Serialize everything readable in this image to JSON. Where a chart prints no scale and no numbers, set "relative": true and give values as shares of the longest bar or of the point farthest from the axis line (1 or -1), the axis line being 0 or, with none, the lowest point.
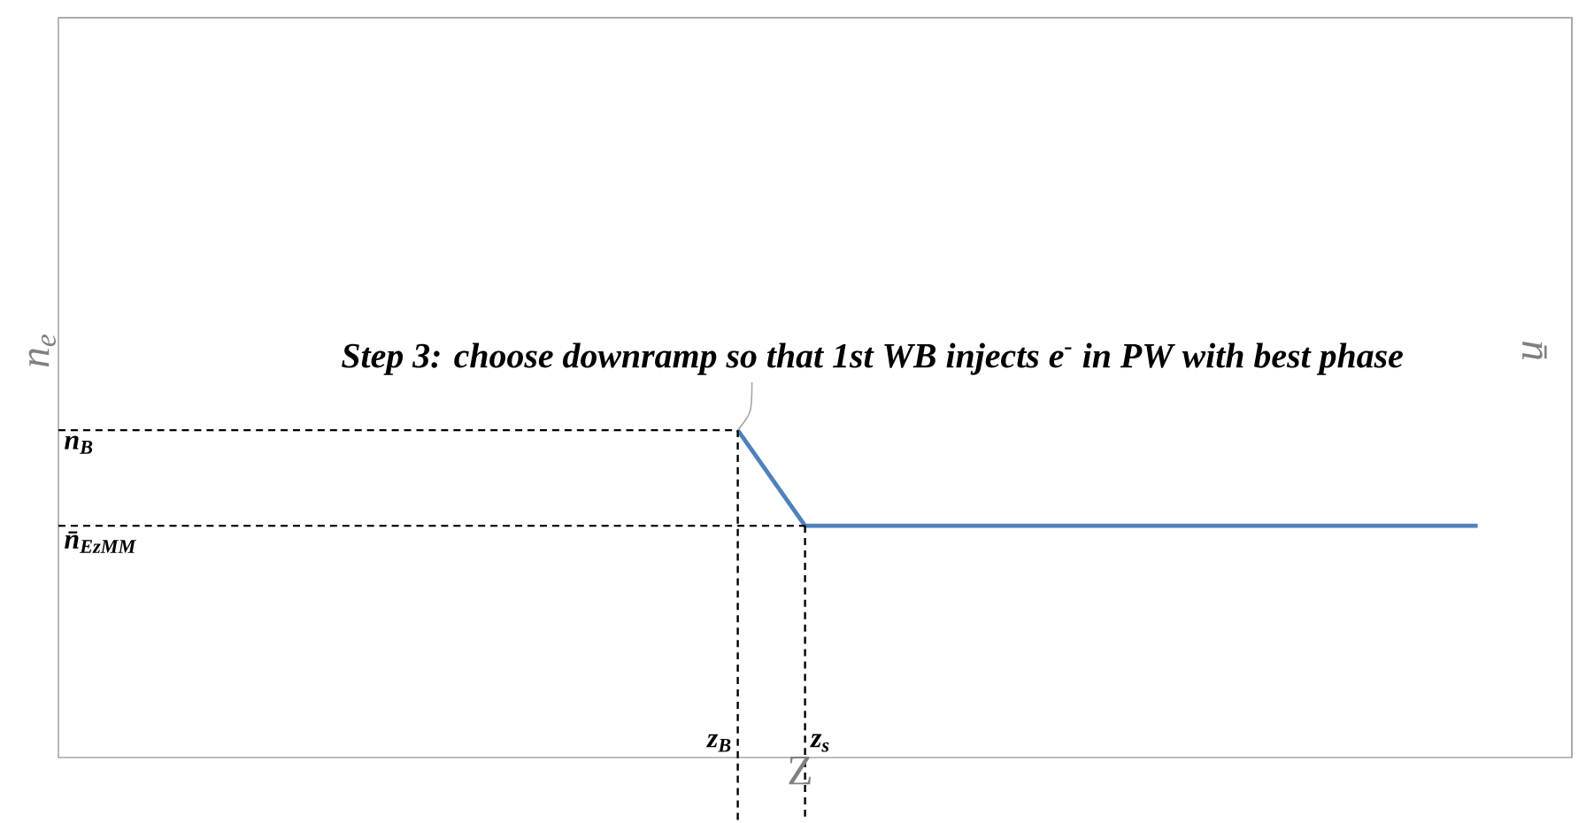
{
  "chart_data": {
    "type": "line",
    "relative": true,
    "tick_labels": false,
    "line_style": "solid",
    "categories": [
      null,
      null,
      null,
      null,
      null,
      null,
      null,
      null,
      null,
      null,
      null,
      null,
      null,
      null,
      null,
      null,
      null,
      null,
      null,
      null,
      null,
      null,
      null
    ],
    "series": [
      {
        "color": "#4f81bd",
        "values": [
          null,
          null,
          null,
          null,
          null,
          null,
          null,
          null,
          null,
          null,
          1,
          0.708,
          0.708,
          0.708,
          0.708,
          0.708,
          0.708,
          0.708,
          0.708,
          0.708,
          0.708,
          0.708,
          null
        ]
      }
    ],
    "xlabel": "Z",
    "ylabel": "n$_{e}$",
    "y2label": "n̄",
    "annotations": [
      "Step 3: choose downramp so that 1st WB injects e$^{-}$ in PW with best phase",
      "z$_{B}$",
      "z$_{s}$"
    ],
    "ref_lines": [
      {
        "axis": "y",
        "value": 1,
        "label": "n$_{B}$",
        "color": "#000000",
        "line_style": "dashed"
      },
      {
        "axis": "y",
        "value": 0.708,
        "label": "n̄$_{EzMM}$",
        "color": "#000000",
        "line_style": "dashed"
      }
    ]
  }
}
